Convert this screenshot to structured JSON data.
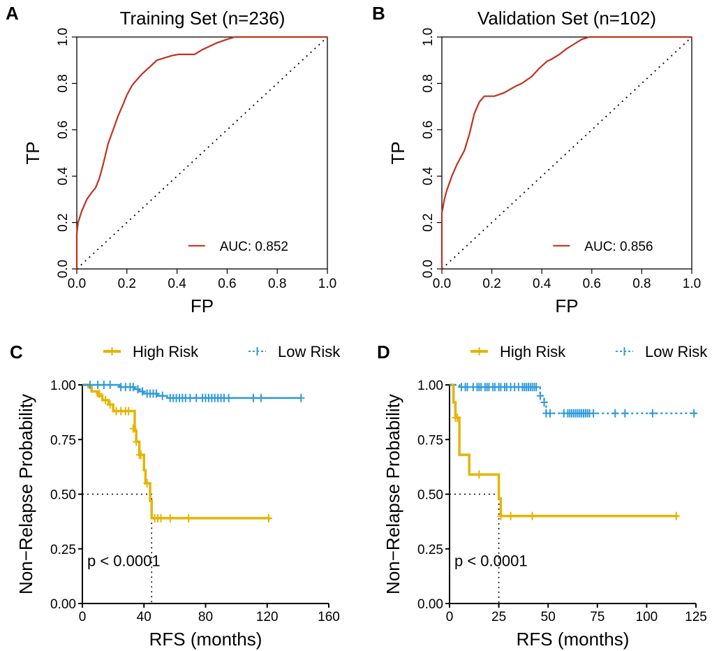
{
  "colors": {
    "roc_line": "#C0321E",
    "high_risk": "#E5B400",
    "low_risk": "#2E9BDB",
    "axis": "#000000"
  },
  "chart_data": [
    {
      "panel": "A",
      "type": "line",
      "title": "Training Set (n=236)",
      "xlabel": "FP",
      "ylabel": "TP",
      "xlim": [
        0,
        1
      ],
      "ylim": [
        0,
        1
      ],
      "xticks": [
        "0.0",
        "0.2",
        "0.4",
        "0.6",
        "0.8",
        "1.0"
      ],
      "yticks": [
        "0.0",
        "0.2",
        "0.4",
        "0.6",
        "0.8",
        "1.0"
      ],
      "legend": {
        "label": "AUC: 0.852",
        "position": "bottom-right"
      },
      "reference_line": "diagonal-dotted",
      "series": [
        {
          "name": "ROC",
          "x": [
            0,
            0,
            0.005,
            0.02,
            0.04,
            0.06,
            0.075,
            0.09,
            0.105,
            0.125,
            0.145,
            0.165,
            0.185,
            0.2,
            0.22,
            0.235,
            0.26,
            0.29,
            0.32,
            0.35,
            0.38,
            0.405,
            0.44,
            0.47,
            0.5,
            0.53,
            0.56,
            0.6,
            0.63,
            1.0
          ],
          "y": [
            0,
            0.15,
            0.2,
            0.25,
            0.3,
            0.33,
            0.35,
            0.39,
            0.45,
            0.54,
            0.6,
            0.66,
            0.71,
            0.75,
            0.79,
            0.81,
            0.84,
            0.87,
            0.9,
            0.91,
            0.92,
            0.925,
            0.925,
            0.925,
            0.945,
            0.96,
            0.975,
            0.99,
            1.0,
            1.0
          ]
        }
      ]
    },
    {
      "panel": "B",
      "type": "line",
      "title": "Validation Set (n=102)",
      "xlabel": "FP",
      "ylabel": "TP",
      "xlim": [
        0,
        1
      ],
      "ylim": [
        0,
        1
      ],
      "xticks": [
        "0.0",
        "0.2",
        "0.4",
        "0.6",
        "0.8",
        "1.0"
      ],
      "yticks": [
        "0.0",
        "0.2",
        "0.4",
        "0.6",
        "0.8",
        "1.0"
      ],
      "legend": {
        "label": "AUC: 0.856",
        "position": "bottom-right"
      },
      "reference_line": "diagonal-dotted",
      "series": [
        {
          "name": "ROC",
          "x": [
            0,
            0,
            0.01,
            0.02,
            0.04,
            0.06,
            0.08,
            0.09,
            0.11,
            0.13,
            0.15,
            0.17,
            0.18,
            0.21,
            0.25,
            0.29,
            0.32,
            0.36,
            0.39,
            0.42,
            0.44,
            0.47,
            0.5,
            0.53,
            0.56,
            0.59,
            1.0
          ],
          "y": [
            0,
            0.24,
            0.3,
            0.34,
            0.4,
            0.45,
            0.49,
            0.51,
            0.58,
            0.67,
            0.72,
            0.745,
            0.745,
            0.745,
            0.76,
            0.785,
            0.8,
            0.83,
            0.865,
            0.895,
            0.905,
            0.925,
            0.95,
            0.97,
            0.99,
            1.0,
            1.0
          ]
        }
      ]
    },
    {
      "panel": "C",
      "type": "line",
      "subtype": "kaplan-meier",
      "xlabel": "RFS (months)",
      "ylabel": "Non−Relapse Probability",
      "xlim": [
        0,
        160
      ],
      "ylim": [
        0,
        1
      ],
      "xticks": [
        "0",
        "40",
        "80",
        "120",
        "160"
      ],
      "yticks": [
        "0.00",
        "0.25",
        "0.50",
        "0.75",
        "1.00"
      ],
      "annotation": "p < 0.0001",
      "median_line": {
        "y": 0.5,
        "x": 45
      },
      "legend": {
        "position": "top",
        "entries": [
          "High Risk",
          "Low Risk"
        ]
      },
      "series": [
        {
          "name": "High Risk",
          "steps": [
            [
              0,
              1.0
            ],
            [
              4,
              0.99
            ],
            [
              6,
              0.97
            ],
            [
              10,
              0.95
            ],
            [
              13,
              0.93
            ],
            [
              17,
              0.91
            ],
            [
              20,
              0.88
            ],
            [
              34,
              0.79
            ],
            [
              35,
              0.74
            ],
            [
              37,
              0.68
            ],
            [
              40,
              0.61
            ],
            [
              41,
              0.55
            ],
            [
              44,
              0.47
            ],
            [
              45,
              0.39
            ],
            [
              122,
              0.39
            ]
          ],
          "censors": [
            [
              11,
              0.96
            ],
            [
              15,
              0.93
            ],
            [
              18,
              0.91
            ],
            [
              22,
              0.88
            ],
            [
              25,
              0.88
            ],
            [
              28,
              0.88
            ],
            [
              30,
              0.88
            ],
            [
              33,
              0.8
            ],
            [
              35,
              0.74
            ],
            [
              37,
              0.68
            ],
            [
              38,
              0.68
            ],
            [
              42,
              0.55
            ],
            [
              47,
              0.39
            ],
            [
              49,
              0.39
            ],
            [
              51,
              0.39
            ],
            [
              57,
              0.39
            ],
            [
              69,
              0.39
            ],
            [
              121,
              0.39
            ]
          ]
        },
        {
          "name": "Low Risk",
          "steps": [
            [
              0,
              1.0
            ],
            [
              24,
              0.99
            ],
            [
              34,
              0.98
            ],
            [
              37,
              0.97
            ],
            [
              40,
              0.96
            ],
            [
              49,
              0.95
            ],
            [
              55,
              0.94
            ],
            [
              142,
              0.94
            ]
          ],
          "censors": [
            [
              5,
              1.0
            ],
            [
              10,
              1.0
            ],
            [
              14,
              1.0
            ],
            [
              18,
              1.0
            ],
            [
              25,
              0.99
            ],
            [
              28,
              0.99
            ],
            [
              31,
              0.99
            ],
            [
              33,
              0.99
            ],
            [
              36,
              0.98
            ],
            [
              39,
              0.97
            ],
            [
              42,
              0.96
            ],
            [
              44,
              0.96
            ],
            [
              46,
              0.96
            ],
            [
              48,
              0.96
            ],
            [
              52,
              0.95
            ],
            [
              57,
              0.94
            ],
            [
              59,
              0.94
            ],
            [
              61,
              0.94
            ],
            [
              63,
              0.94
            ],
            [
              65,
              0.94
            ],
            [
              67,
              0.94
            ],
            [
              70,
              0.94
            ],
            [
              74,
              0.94
            ],
            [
              78,
              0.94
            ],
            [
              80,
              0.94
            ],
            [
              82,
              0.94
            ],
            [
              84,
              0.94
            ],
            [
              86,
              0.94
            ],
            [
              88,
              0.94
            ],
            [
              90,
              0.94
            ],
            [
              92,
              0.94
            ],
            [
              95,
              0.94
            ],
            [
              111,
              0.94
            ],
            [
              116,
              0.94
            ],
            [
              142,
              0.94
            ]
          ]
        }
      ]
    },
    {
      "panel": "D",
      "type": "line",
      "subtype": "kaplan-meier",
      "xlabel": "RFS (months)",
      "ylabel": "Non−Relapse Probability",
      "xlim": [
        0,
        125
      ],
      "ylim": [
        0,
        1
      ],
      "xticks": [
        "0",
        "25",
        "50",
        "75",
        "100",
        "125"
      ],
      "yticks": [
        "0.00",
        "0.25",
        "0.50",
        "0.75",
        "1.00"
      ],
      "annotation": "p < 0.0001",
      "median_line": {
        "y": 0.5,
        "x": 25
      },
      "legend": {
        "position": "top",
        "entries": [
          "High Risk",
          "Low Risk"
        ]
      },
      "series": [
        {
          "name": "High Risk",
          "steps": [
            [
              0,
              1.0
            ],
            [
              2,
              0.92
            ],
            [
              3,
              0.85
            ],
            [
              5,
              0.68
            ],
            [
              10,
              0.59
            ],
            [
              25,
              0.48
            ],
            [
              26,
              0.4
            ],
            [
              116,
              0.4
            ]
          ],
          "censors": [
            [
              3,
              0.85
            ],
            [
              4,
              0.85
            ],
            [
              15,
              0.59
            ],
            [
              26,
              0.4
            ],
            [
              31,
              0.4
            ],
            [
              42,
              0.4
            ],
            [
              115,
              0.4
            ]
          ]
        },
        {
          "name": "Low Risk",
          "steps": [
            [
              0,
              1.0
            ],
            [
              5,
              0.99
            ],
            [
              46,
              0.95
            ],
            [
              48,
              0.92
            ],
            [
              49,
              0.87
            ],
            [
              125,
              0.87
            ]
          ],
          "censors": [
            [
              6,
              0.99
            ],
            [
              8,
              0.99
            ],
            [
              9,
              0.99
            ],
            [
              12,
              0.99
            ],
            [
              14,
              0.99
            ],
            [
              15,
              0.99
            ],
            [
              16,
              0.99
            ],
            [
              18,
              0.99
            ],
            [
              19,
              0.99
            ],
            [
              20,
              0.99
            ],
            [
              22,
              0.99
            ],
            [
              23,
              0.99
            ],
            [
              25,
              0.99
            ],
            [
              26,
              0.99
            ],
            [
              28,
              0.99
            ],
            [
              29,
              0.99
            ],
            [
              31,
              0.99
            ],
            [
              33,
              0.99
            ],
            [
              35,
              0.99
            ],
            [
              37,
              0.99
            ],
            [
              38,
              0.99
            ],
            [
              39,
              0.99
            ],
            [
              40,
              0.99
            ],
            [
              41,
              0.99
            ],
            [
              42,
              0.99
            ],
            [
              43,
              0.99
            ],
            [
              44,
              0.99
            ],
            [
              46,
              0.95
            ],
            [
              48,
              0.92
            ],
            [
              49,
              0.87
            ],
            [
              51,
              0.87
            ],
            [
              58,
              0.87
            ],
            [
              60,
              0.87
            ],
            [
              61,
              0.87
            ],
            [
              62,
              0.87
            ],
            [
              63,
              0.87
            ],
            [
              64,
              0.87
            ],
            [
              65,
              0.87
            ],
            [
              66,
              0.87
            ],
            [
              67,
              0.87
            ],
            [
              68,
              0.87
            ],
            [
              69,
              0.87
            ],
            [
              70,
              0.87
            ],
            [
              71,
              0.87
            ],
            [
              73,
              0.87
            ],
            [
              84,
              0.87
            ],
            [
              89,
              0.87
            ],
            [
              103,
              0.87
            ],
            [
              124,
              0.87
            ]
          ]
        }
      ]
    }
  ]
}
